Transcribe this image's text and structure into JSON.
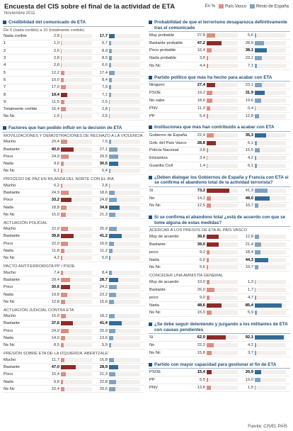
{
  "header": {
    "title": "Encuesta del CIS sobre el final de la actividad de ETA",
    "date": "Noviembre 2011"
  },
  "legend": {
    "unit": "En %",
    "items": [
      {
        "name": "País Vasco",
        "color": "#d98f82",
        "highlight": "#8e2b26"
      },
      {
        "name": "Resto de España",
        "color": "#7fa2bf",
        "highlight": "#336c97"
      }
    ]
  },
  "source": "Fuente: CIS/EL PAÍS",
  "chart_data": [
    {
      "type": "bar",
      "title": "Credibilidad del comunicado de ETA",
      "subtitle": "De 0 (nada creíble) a 10 (totalmente creíble)",
      "categories": [
        "Nada creíble",
        "1",
        "2",
        "3",
        "4",
        "5",
        "6",
        "7",
        "8",
        "9",
        "Totalmente creíble",
        "Ns Nc"
      ],
      "series": [
        {
          "values": [
            2.8,
            1.0,
            2.6,
            2.8,
            2.8,
            12.2,
            10.0,
            17.0,
            19.4,
            11.5,
            16.4,
            1.6
          ],
          "value_labels": [
            "2,8",
            "1,0",
            "2,6",
            "2,8",
            "2,8",
            "12,2",
            "10,0",
            "17,0",
            "19,4",
            "11,5",
            "16,4",
            "1,6"
          ]
        },
        {
          "values": [
            17.7,
            6.7,
            8.9,
            8.5,
            6.6,
            17.4,
            8.4,
            7.9,
            7.1,
            2.5,
            2.8,
            2.5
          ],
          "value_labels": [
            "17,7",
            "6,7",
            "8,9",
            "8,5",
            "6,6",
            "17,4",
            "8,4",
            "7,9",
            "7,1",
            "2,5",
            "2,8",
            "2,5"
          ]
        }
      ]
    },
    {
      "type": "bar",
      "title": "Factores que han podido influir en la decisión de ETA",
      "subtitle": "MOVILIZACIONES Y DEMOSTRACIONES DE RECHAZO A LA VIOLENCIA",
      "categories": [
        "Mucho",
        "Bastante",
        "Poco",
        "Nada",
        "Ns Nc"
      ],
      "series": [
        {
          "values": [
            20.4,
            40.0,
            24.9,
            9.6,
            5.1
          ],
          "value_labels": [
            "20,4",
            "40,0",
            "24,9",
            "9,6",
            "5,1"
          ]
        },
        {
          "values": [
            7.5,
            27.1,
            29.5,
            30.5,
            5.4
          ],
          "value_labels": [
            "7,5",
            "27,1",
            "29,5",
            "30,5",
            "5,4"
          ]
        }
      ]
    },
    {
      "type": "bar",
      "subtitle": "PROCESO DE PAZ EN IRLANDA DEL NORTE CON EL IRA",
      "categories": [
        "Mucho",
        "Bastante",
        "Poco",
        "Nada",
        "Ns Nc"
      ],
      "series": [
        {
          "values": [
            5.2,
            24.9,
            33.2,
            18.8,
            15.0
          ],
          "value_labels": [
            "5,2",
            "24,9",
            "33,2",
            "18,8",
            "15,0"
          ]
        },
        {
          "values": [
            2.8,
            18.6,
            24.8,
            34.8,
            21.3
          ],
          "value_labels": [
            "2,8",
            "18,6",
            "24,8",
            "34,8",
            "21,3"
          ]
        }
      ]
    },
    {
      "type": "bar",
      "subtitle": "ACTUACIÓN POLICIAL",
      "categories": [
        "Mucho",
        "Bastante",
        "Poco",
        "Nada",
        "Ns Nc"
      ],
      "series": [
        {
          "values": [
            22.0,
            39.8,
            22.0,
            11.8,
            4.2
          ],
          "value_labels": [
            "22,0",
            "39,8",
            "22,0",
            "11,8",
            "4,2"
          ]
        },
        {
          "values": [
            25.9,
            41.2,
            16.6,
            11.2,
            5.0
          ],
          "value_labels": [
            "25,9",
            "41,2",
            "16,6",
            "11,2",
            "5,0"
          ]
        }
      ]
    },
    {
      "type": "bar",
      "subtitle": "PACTO ANTITERRORISTA PP / PSOE",
      "categories": [
        "Mucho",
        "Bastante",
        "Poco",
        "Nada",
        "Ns Nc"
      ],
      "series": [
        {
          "values": [
            7.4,
            29.4,
            30.6,
            19.8,
            12.8
          ],
          "value_labels": [
            "7,4",
            "29,4",
            "30,6",
            "19,8",
            "12,8"
          ]
        },
        {
          "values": [
            8.4,
            28.7,
            24.2,
            23.2,
            15.6
          ],
          "value_labels": [
            "8,4",
            "28,7",
            "24,2",
            "23,2",
            "15,6"
          ]
        }
      ]
    },
    {
      "type": "bar",
      "subtitle": "ACTUACIÓN JUDICIAL CONTRA ETA",
      "categories": [
        "Mucho",
        "Bastante",
        "Poco",
        "Nada",
        "Ns Nc"
      ],
      "series": [
        {
          "values": [
            15.0,
            37.6,
            24.9,
            14.0,
            8.5
          ],
          "value_labels": [
            "15,0",
            "37,6",
            "24,9",
            "14,0",
            "8,5"
          ]
        },
        {
          "values": [
            18.2,
            41.4,
            20.9,
            13.6,
            5.9
          ],
          "value_labels": [
            "18,2",
            "41,4",
            "20,9",
            "13,6",
            "5,9"
          ]
        }
      ]
    },
    {
      "type": "bar",
      "subtitle": "PRESIÓN SOBRE ETA DE LA IZQUIERDA ‘ABERTZALE’",
      "categories": [
        "Mucho",
        "Bastante",
        "Poco",
        "Nada",
        "Ns Nc"
      ],
      "series": [
        {
          "values": [
            11.7,
            47.0,
            16.4,
            6.8,
            10.4
          ],
          "value_labels": [
            "11,7",
            "47,0",
            "16,4",
            "6,8",
            "10,4"
          ]
        },
        {
          "values": [
            16.8,
            28.9,
            21.3,
            22.8,
            20.5
          ],
          "value_labels": [
            "16,8",
            "28,9",
            "21,3",
            "22,8",
            "20,5"
          ]
        }
      ]
    },
    {
      "type": "bar",
      "title": "Probabilidad de que el terrorismo desaparezca definitivamente tras el comunicado",
      "categories": [
        "Muy probable",
        "Bastante probable",
        "Poco probable",
        "Nada probable",
        "Ns Nc"
      ],
      "series": [
        {
          "values": [
            27.8,
            47.2,
            16.4,
            3.8,
            4.4
          ],
          "value_labels": [
            "27,8",
            "47,2",
            "16,4",
            "3,8",
            "4,4"
          ]
        },
        {
          "values": [
            5.6,
            28.9,
            38.1,
            23.1,
            7.1
          ],
          "value_labels": [
            "5,6",
            "28,9",
            "38,1",
            "23,1",
            "7,1"
          ]
        }
      ]
    },
    {
      "type": "bar",
      "title": "Partido político que más ha hecho para acabar con ETA",
      "categories": [
        "Ninguno",
        "PSOE",
        "No sabe",
        "PNV",
        "PP"
      ],
      "series": [
        {
          "values": [
            27.4,
            19.2,
            18.6,
            11.0,
            5.4
          ],
          "value_labels": [
            "27,4",
            "19,2",
            "18,6",
            "11,0",
            "5,4"
          ]
        },
        {
          "values": [
            23.1,
            31.9,
            19.6,
            0.4,
            12.8
          ],
          "value_labels": [
            "23,1",
            "31,9",
            "19,6",
            "0,4",
            "12,8"
          ]
        }
      ]
    },
    {
      "type": "bar",
      "title": "Instituciones que más han contribuido a acabar con ETA",
      "categories": [
        "Gobierno de España",
        "Gob. del País Vasco",
        "Policía Nacional",
        "Ertzaintza",
        "Guardia Civil"
      ],
      "series": [
        {
          "values": [
            22.4,
            28.8,
            3.8,
            3.4,
            1.4
          ],
          "value_labels": [
            "22,4",
            "28,8",
            "3,8",
            "3,4",
            "1,4"
          ]
        },
        {
          "values": [
            35.3,
            6.1,
            15.5,
            4.2,
            6.1
          ],
          "value_labels": [
            "35,3",
            "6,1",
            "15,5",
            "4,2",
            "6,1"
          ]
        }
      ]
    },
    {
      "type": "bar",
      "title": "¿Deben dialogar los Gobiernos de España y Francia con ETA si se confirma el abandono total de la actividad terrorista?",
      "categories": [
        "Sí",
        "No",
        "Ns Nc"
      ],
      "series": [
        {
          "values": [
            73.2,
            14.2,
            12.5
          ],
          "value_labels": [
            "73,2",
            "14,2",
            "12,5"
          ]
        },
        {
          "values": [
            41.3,
            48.0,
            10.7
          ],
          "value_labels": [
            "41,3",
            "48,0",
            "10,7"
          ]
        }
      ]
    },
    {
      "type": "bar",
      "title": "Si se confirma el abandono total ¿está de acuerdo con que se tome alguna de estas medidas?",
      "subtitle": "ACERCAR A LOS PRESOS DE ETA AL PAÍS VASCO",
      "categories": [
        "Muy de acuerdo",
        "Bastante",
        "poco",
        "Nada",
        "Ns Nc"
      ],
      "series": [
        {
          "values": [
            39.0,
            39.0,
            9.2,
            6.0,
            5.6
          ],
          "value_labels": [
            "39,0",
            "39,0",
            "9,2",
            "6,0",
            "5,6"
          ]
        },
        {
          "values": [
            12.8,
            21.4,
            18.4,
            44.3,
            10.7
          ],
          "value_labels": [
            "12,8",
            "21,4",
            "18,4",
            "44,3",
            "10,7"
          ]
        }
      ]
    },
    {
      "type": "bar",
      "subtitle": "CONCEDER UNA AMNISTÍA GENERAL",
      "categories": [
        "Muy de acuerdo",
        "Bastante",
        "poco",
        "Nada",
        "Ns Nc"
      ],
      "series": [
        {
          "values": [
            10.0,
            26.0,
            9.0,
            48.6,
            15.0
          ],
          "value_labels": [
            "10,0",
            "26,0",
            "9,0",
            "48,6",
            "15,0"
          ]
        },
        {
          "values": [
            1.3,
            1.7,
            4.7,
            85.4,
            5.9
          ],
          "value_labels": [
            "1,3",
            "1,7",
            "4,7",
            "85,4",
            "5,9"
          ]
        }
      ]
    },
    {
      "type": "bar",
      "title": "¿Se debe seguir deteniendo y juzgando a los militantes de ETA con causas pendientes",
      "categories": [
        "Sí",
        "No",
        "Ns Nc"
      ],
      "series": [
        {
          "values": [
            62.0,
            22.2,
            15.8
          ],
          "value_labels": [
            "62,0",
            "22,2",
            "15,8"
          ]
        },
        {
          "values": [
            92.1,
            4.2,
            3.7
          ],
          "value_labels": [
            "92,1",
            "4,2",
            "3,7"
          ]
        }
      ]
    },
    {
      "type": "bar",
      "title": "Partido con mayor capacidad para gestionar el fin de ETA",
      "categories": [
        "PSOE",
        "PP",
        "PNV"
      ],
      "series": [
        {
          "values": [
            15.4,
            5.5,
            13.8
          ],
          "value_labels": [
            "15,4",
            "5,5",
            "13,8"
          ]
        },
        {
          "values": [
            20.9,
            19.0,
            1.5
          ],
          "value_labels": [
            "20,9",
            "19,0",
            "1,5"
          ]
        }
      ]
    }
  ]
}
